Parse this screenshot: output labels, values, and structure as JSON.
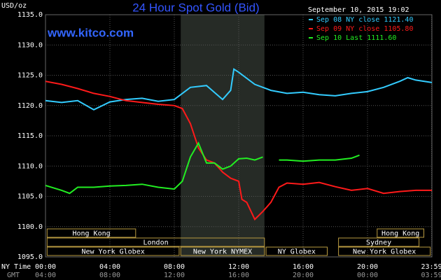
{
  "chart_data": {
    "type": "line",
    "title": "24 Hour Spot Gold (Bid)",
    "site": "www.kitco.com",
    "timestamp": "September 10, 2015 19:02",
    "y_unit": "USD/oz",
    "x_row_label": "NY Time",
    "x2_row_label": "GMT",
    "ylim": [
      1095,
      1135
    ],
    "yticks": [
      {
        "value": 1095,
        "label": "1095.0"
      },
      {
        "value": 1100,
        "label": "1100.0"
      },
      {
        "value": 1105,
        "label": "1105.0"
      },
      {
        "value": 1110,
        "label": "1110.0"
      },
      {
        "value": 1115,
        "label": "1115.0"
      },
      {
        "value": 1120,
        "label": "1120.0"
      },
      {
        "value": 1125,
        "label": "1125.0"
      },
      {
        "value": 1130,
        "label": "1130.0"
      },
      {
        "value": 1135,
        "label": "1135.0"
      }
    ],
    "xlim": [
      0,
      24
    ],
    "xticks": [
      {
        "value": 0,
        "label": "00:00"
      },
      {
        "value": 4,
        "label": "04:00"
      },
      {
        "value": 8,
        "label": "08:00"
      },
      {
        "value": 12,
        "label": "12:00"
      },
      {
        "value": 16,
        "label": "16:00"
      },
      {
        "value": 20,
        "label": "20:00"
      },
      {
        "value": 23.98,
        "label": "23:59"
      }
    ],
    "x2_labels": [
      "04:00",
      "08:00",
      "12:00",
      "16:00",
      "20:00",
      "00:00",
      "03:59"
    ],
    "grid": true,
    "highlight": [
      8.4,
      13.6
    ],
    "series": [
      {
        "name": "Sep 08 NY close 1121.40",
        "color": "#33ccff",
        "x": [
          0,
          1,
          2,
          3,
          4,
          5,
          6,
          7,
          8,
          9,
          10,
          11,
          11.5,
          11.7,
          12,
          13,
          14,
          15,
          16,
          17,
          18,
          19,
          20,
          21,
          22,
          22.5,
          23,
          24
        ],
        "values": [
          1120.8,
          1120.5,
          1120.8,
          1119.3,
          1120.6,
          1121.0,
          1121.2,
          1120.7,
          1121.0,
          1123.0,
          1123.3,
          1121.0,
          1122.5,
          1126.0,
          1125.5,
          1123.5,
          1122.5,
          1122.0,
          1122.2,
          1121.8,
          1121.6,
          1122.0,
          1122.3,
          1123.0,
          1124.0,
          1124.6,
          1124.2,
          1123.8
        ]
      },
      {
        "name": "Sep 09 NY close 1105.80",
        "color": "#ff1a1a",
        "x": [
          0,
          1,
          2,
          3,
          4,
          5,
          6,
          7,
          8,
          8.5,
          9,
          9.5,
          10,
          10.5,
          11,
          11.5,
          12,
          12.2,
          12.5,
          13,
          13.5,
          14,
          14.5,
          15,
          16,
          17,
          18,
          19,
          20,
          21,
          22,
          23,
          24
        ],
        "values": [
          1124.0,
          1123.5,
          1122.8,
          1122.0,
          1121.5,
          1120.8,
          1120.5,
          1120.2,
          1120.0,
          1119.5,
          1117.0,
          1113.0,
          1111.0,
          1110.5,
          1109.0,
          1108.0,
          1107.5,
          1104.5,
          1104.0,
          1101.2,
          1102.5,
          1104.0,
          1106.5,
          1107.2,
          1107.0,
          1107.3,
          1106.6,
          1106.0,
          1106.3,
          1105.5,
          1105.8,
          1106.0,
          1106.0
        ]
      },
      {
        "name": "Sep 10 Last 1111.60",
        "color": "#22ee22",
        "x": [
          0,
          1,
          1.5,
          2,
          3,
          4,
          5,
          6,
          7,
          8,
          8.5,
          9,
          9.5,
          10,
          10.5,
          11,
          11.5,
          12,
          12.5,
          13,
          13.5,
          14.2,
          14.5,
          15,
          16,
          17,
          18,
          19,
          19.5
        ],
        "values": [
          1106.8,
          1106.0,
          1105.5,
          1106.5,
          1106.5,
          1106.7,
          1106.8,
          1107.0,
          1106.5,
          1106.2,
          1107.5,
          1111.5,
          1113.8,
          1110.5,
          1110.5,
          1109.5,
          1110.0,
          1111.2,
          1111.3,
          1111.0,
          1111.5,
          null,
          1111.0,
          1111.0,
          1110.8,
          1111.0,
          1111.0,
          1111.3,
          1111.8
        ]
      }
    ],
    "sessions": [
      {
        "label": "Hong Kong",
        "start": 0.1,
        "end": 5.6,
        "row": 0
      },
      {
        "label": "Hong Kong",
        "start": 20.6,
        "end": 23.5,
        "row": 0
      },
      {
        "label": "London",
        "start": 0.1,
        "end": 13.6,
        "row": 1
      },
      {
        "label": "Sydney",
        "start": 18.2,
        "end": 23.2,
        "row": 1
      },
      {
        "label": "New York Globex",
        "start": 0.1,
        "end": 8.3,
        "row": 2
      },
      {
        "label": "New York NYMEX",
        "start": 8.4,
        "end": 13.6,
        "row": 2
      },
      {
        "label": "NY Globex",
        "start": 13.7,
        "end": 17.5,
        "row": 2
      },
      {
        "label": "New York Globex",
        "start": 18.2,
        "end": 23.9,
        "row": 2
      }
    ]
  }
}
